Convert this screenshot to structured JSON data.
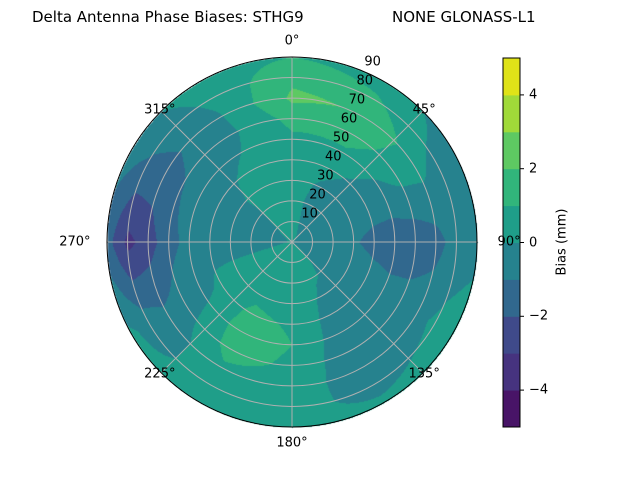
{
  "title_left": "Delta Antenna Phase Biases: STHG9",
  "title_right": "NONE GLONASS-L1",
  "chart_data": {
    "type": "heatmap",
    "projection": "polar",
    "theta_direction": "clockwise",
    "theta_zero": "north",
    "azimuth_ticks": [
      "0°",
      "45°",
      "90°",
      "135°",
      "180°",
      "225°",
      "270°",
      "315°"
    ],
    "radial_ticks": [
      "10",
      "20",
      "30",
      "40",
      "50",
      "60",
      "70",
      "80",
      "90"
    ],
    "radial_range": [
      0,
      90
    ],
    "grid": true,
    "colorbar": {
      "label": "Bias (mm)",
      "levels": [
        -5,
        -4,
        -3,
        -2,
        -1,
        0,
        1,
        2,
        3,
        4,
        5
      ],
      "tick_labels": [
        "4",
        "2",
        "0",
        "−2",
        "−4"
      ],
      "tick_values": [
        4,
        2,
        0,
        -2,
        -4
      ],
      "colormap": "viridis",
      "colors": [
        "#481467",
        "#46337f",
        "#3f4a8a",
        "#31688e",
        "#26828e",
        "#1f9e89",
        "#31b57b",
        "#5ec962",
        "#a0da39",
        "#dfe318"
      ]
    },
    "azimuth": [
      0,
      30,
      60,
      90,
      120,
      150,
      180,
      210,
      240,
      270,
      300,
      330
    ],
    "zenith": [
      0,
      10,
      20,
      30,
      40,
      50,
      60,
      70,
      80,
      90
    ],
    "values": [
      [
        0.2,
        0.3,
        0.3,
        0.4,
        0.5,
        0.8,
        1.3,
        2.2,
        1.8,
        1.0
      ],
      [
        0.1,
        -0.2,
        -0.3,
        -0.2,
        0.2,
        0.8,
        1.5,
        1.9,
        1.2,
        0.5
      ],
      [
        0.0,
        -0.3,
        -0.5,
        -0.6,
        -0.5,
        -0.3,
        0.2,
        0.3,
        -0.3,
        -0.5
      ],
      [
        0.0,
        -0.3,
        -0.6,
        -0.9,
        -1.3,
        -1.6,
        -1.7,
        -1.4,
        -0.5,
        -0.3
      ],
      [
        0.0,
        -0.2,
        -0.3,
        -0.4,
        -0.5,
        -0.6,
        -0.5,
        -0.3,
        0.2,
        0.5
      ],
      [
        0.2,
        0.2,
        0.1,
        -0.2,
        -0.5,
        -0.7,
        -0.8,
        -0.6,
        -0.3,
        0.2
      ],
      [
        0.3,
        0.5,
        0.6,
        0.7,
        0.9,
        1.0,
        0.8,
        0.5,
        0.3,
        0.2
      ],
      [
        0.3,
        0.5,
        0.6,
        0.8,
        1.2,
        1.5,
        1.4,
        0.8,
        0.4,
        0.3
      ],
      [
        0.3,
        0.4,
        0.5,
        0.4,
        0.2,
        -0.3,
        -0.6,
        -0.8,
        -0.4,
        0.2
      ],
      [
        0.1,
        -0.3,
        -0.5,
        -0.5,
        -0.4,
        -0.7,
        -1.3,
        -2.5,
        -3.3,
        -1.6
      ],
      [
        0.1,
        -0.2,
        -0.3,
        -0.2,
        -0.3,
        -0.5,
        -1.0,
        -1.4,
        -1.1,
        -0.5
      ],
      [
        0.2,
        0.3,
        0.3,
        0.3,
        0.2,
        0.0,
        -0.2,
        -0.1,
        0.2,
        0.5
      ]
    ]
  }
}
